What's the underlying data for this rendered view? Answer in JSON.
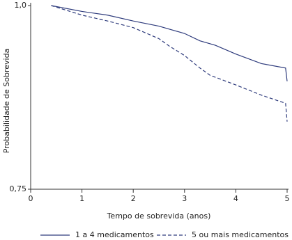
{
  "chart_data": {
    "type": "line",
    "y_label": "Probabilidade de Sobrevida",
    "x_label": "Tempo de sobrevida (anos)",
    "xlim": [
      0,
      5
    ],
    "xticks": [
      0,
      1,
      2,
      3,
      4,
      5
    ],
    "ylim": [
      0.75,
      1
    ],
    "yticks": [
      {
        "value": 0.75,
        "label": "0,75"
      },
      {
        "value": 1,
        "label": "1,0"
      }
    ],
    "series": [
      {
        "name": "1 a 4 medicamentos",
        "color": "#2e3b7c",
        "line_style": "solid",
        "x": [
          0.4,
          1,
          1.5,
          2,
          2.5,
          3,
          3.3,
          3.6,
          4,
          4.5,
          4.97,
          5
        ],
        "values": [
          1.0,
          0.992,
          0.987,
          0.979,
          0.972,
          0.962,
          0.952,
          0.946,
          0.934,
          0.921,
          0.915,
          0.897
        ]
      },
      {
        "name": "5 ou mais medicamentos",
        "color": "#2e3b7c",
        "line_style": "dashed",
        "x": [
          0.4,
          1,
          1.5,
          2,
          2.5,
          2.7,
          3,
          3.3,
          3.5,
          4,
          4.5,
          4.97,
          5
        ],
        "values": [
          1.0,
          0.987,
          0.979,
          0.97,
          0.955,
          0.945,
          0.932,
          0.915,
          0.905,
          0.892,
          0.878,
          0.867,
          0.842
        ]
      }
    ]
  }
}
